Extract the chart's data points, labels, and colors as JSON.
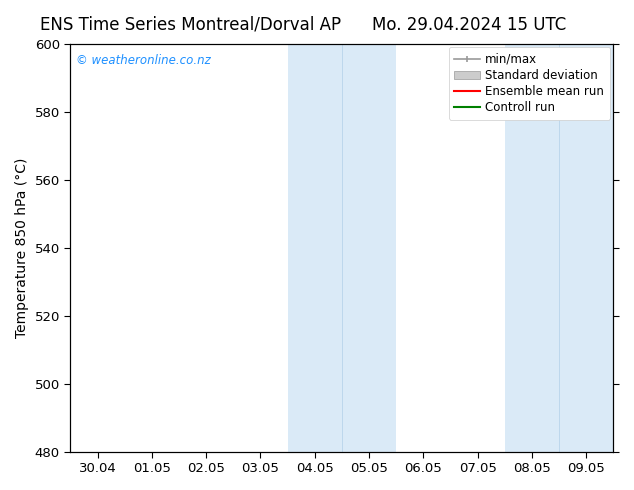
{
  "title_left": "ENS Time Series Montreal/Dorval AP",
  "title_right": "Mo. 29.04.2024 15 UTC",
  "ylabel": "Temperature 850 hPa (°C)",
  "ylim": [
    480,
    600
  ],
  "yticks": [
    480,
    500,
    520,
    540,
    560,
    580,
    600
  ],
  "xtick_labels": [
    "30.04",
    "01.05",
    "02.05",
    "03.05",
    "04.05",
    "05.05",
    "06.05",
    "07.05",
    "08.05",
    "09.05"
  ],
  "n_xticks": 10,
  "shaded_regions": [
    {
      "xstart": 3.5,
      "xend": 4.5,
      "color": "#daeaf7"
    },
    {
      "xstart": 4.5,
      "xend": 5.5,
      "color": "#daeaf7"
    },
    {
      "xstart": 7.5,
      "xend": 8.5,
      "color": "#daeaf7"
    },
    {
      "xstart": 8.5,
      "xend": 9.5,
      "color": "#daeaf7"
    }
  ],
  "shaded_dividers": [
    4.5,
    8.5
  ],
  "watermark_text": "© weatheronline.co.nz",
  "watermark_color": "#1e90ff",
  "background_color": "#ffffff",
  "no_grid": true,
  "title_fontsize": 12,
  "axis_label_fontsize": 10,
  "tick_fontsize": 9.5,
  "legend_fontsize": 8.5
}
